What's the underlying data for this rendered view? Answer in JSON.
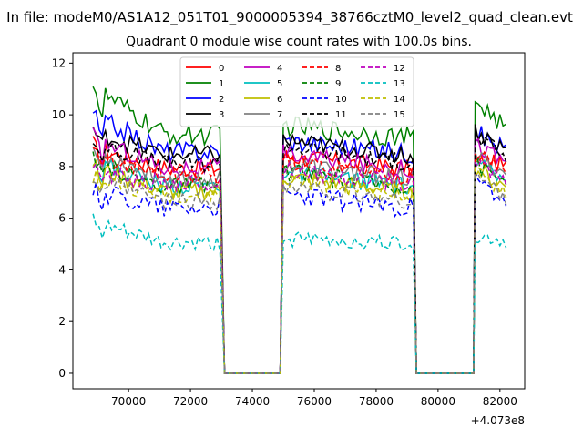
{
  "figure": {
    "suptitle": "In file: modeM0/AS1A12_051T01_9000005394_38766cztM0_level2_quad_clean.evt",
    "offset_label": "+4.073e8"
  },
  "chart_data": {
    "type": "line",
    "title": "Quadrant 0 module wise count rates with 100.0s bins.",
    "xlabel": "",
    "ylabel": "",
    "x_offset": 407300000,
    "xlim": [
      68200,
      82800
    ],
    "ylim": [
      -0.6,
      12.4
    ],
    "xticks": [
      70000,
      72000,
      74000,
      76000,
      78000,
      80000,
      82000
    ],
    "xtick_labels": [
      "70000",
      "72000",
      "74000",
      "76000",
      "78000",
      "80000",
      "82000"
    ],
    "yticks": [
      0,
      2,
      4,
      6,
      8,
      10,
      12
    ],
    "ytick_labels": [
      "0",
      "2",
      "4",
      "6",
      "8",
      "10",
      "12"
    ],
    "legend_position": "top-center",
    "gaps": [
      [
        73100,
        74900
      ],
      [
        79300,
        81200
      ]
    ],
    "segments": [
      [
        68850,
        73000
      ],
      [
        75000,
        79200
      ],
      [
        81200,
        82250
      ]
    ],
    "series": [
      {
        "name": "0",
        "color": "#ff0000",
        "dash": "solid",
        "start": 8.9,
        "base": 8.1,
        "end": 7.9,
        "amp": 0.35,
        "mid": 8.4,
        "late": 8.3
      },
      {
        "name": "1",
        "color": "#008000",
        "dash": "solid",
        "start": 11.4,
        "base": 9.7,
        "end": 9.1,
        "amp": 0.4,
        "mid": 9.6,
        "late": 10.6
      },
      {
        "name": "2",
        "color": "#0000ff",
        "dash": "solid",
        "start": 10.2,
        "base": 8.9,
        "end": 8.5,
        "amp": 0.4,
        "mid": 9.0,
        "late": 9.3
      },
      {
        "name": "3",
        "color": "#000000",
        "dash": "solid",
        "start": 9.5,
        "base": 8.7,
        "end": 8.4,
        "amp": 0.35,
        "mid": 9.0,
        "late": 9.4
      },
      {
        "name": "4",
        "color": "#bf00bf",
        "dash": "solid",
        "start": 9.3,
        "base": 8.2,
        "end": 7.9,
        "amp": 0.35,
        "mid": 8.5,
        "late": 8.9
      },
      {
        "name": "5",
        "color": "#00bfbf",
        "dash": "solid",
        "start": 8.4,
        "base": 7.5,
        "end": 7.2,
        "amp": 0.35,
        "mid": 7.8,
        "late": 8.1
      },
      {
        "name": "6",
        "color": "#bfbf00",
        "dash": "solid",
        "start": 8.2,
        "base": 7.2,
        "end": 7.0,
        "amp": 0.35,
        "mid": 7.6,
        "late": 7.9
      },
      {
        "name": "7",
        "color": "#808080",
        "dash": "solid",
        "start": 8.8,
        "base": 7.7,
        "end": 7.5,
        "amp": 0.35,
        "mid": 8.1,
        "late": 8.4
      },
      {
        "name": "8",
        "color": "#ff0000",
        "dash": "dashed",
        "start": 8.6,
        "base": 7.8,
        "end": 7.6,
        "amp": 0.35,
        "mid": 8.2,
        "late": 8.5
      },
      {
        "name": "9",
        "color": "#008000",
        "dash": "dashed",
        "start": 8.3,
        "base": 7.4,
        "end": 7.2,
        "amp": 0.35,
        "mid": 7.8,
        "late": 8.1
      },
      {
        "name": "10",
        "color": "#0000ff",
        "dash": "dashed",
        "start": 7.2,
        "base": 6.6,
        "end": 6.4,
        "amp": 0.4,
        "mid": 6.9,
        "late": 7.4
      },
      {
        "name": "11",
        "color": "#000000",
        "dash": "dashed",
        "start": 9.0,
        "base": 8.3,
        "end": 8.1,
        "amp": 0.35,
        "mid": 8.8,
        "late": 9.2
      },
      {
        "name": "12",
        "color": "#bf00bf",
        "dash": "dashed",
        "start": 7.9,
        "base": 7.5,
        "end": 7.3,
        "amp": 0.35,
        "mid": 7.9,
        "late": 8.2
      },
      {
        "name": "13",
        "color": "#00bfbf",
        "dash": "dashed",
        "start": 6.0,
        "base": 5.1,
        "end": 5.0,
        "amp": 0.3,
        "mid": 5.2,
        "late": 5.3
      },
      {
        "name": "14",
        "color": "#bfbf00",
        "dash": "dashed",
        "start": 7.7,
        "base": 7.1,
        "end": 6.9,
        "amp": 0.35,
        "mid": 7.5,
        "late": 7.7
      },
      {
        "name": "15",
        "color": "#808080",
        "dash": "dashed",
        "start": 7.6,
        "base": 6.8,
        "end": 6.6,
        "amp": 0.35,
        "mid": 7.2,
        "late": 7.6
      }
    ]
  }
}
